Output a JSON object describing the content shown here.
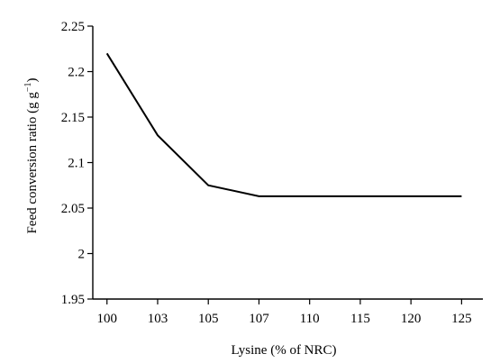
{
  "chart_data": {
    "type": "line",
    "title": "",
    "xlabel": "Lysine (% of NRC)",
    "ylabel_main": "Feed conversion ratio (g g",
    "ylabel_sup": "−1",
    "ylabel_close": ")",
    "categories": [
      "100",
      "103",
      "105",
      "107",
      "110",
      "115",
      "120",
      "125"
    ],
    "series": [
      {
        "values": [
          2.22,
          2.13,
          2.075,
          2.063,
          2.063,
          2.063,
          2.063,
          2.063
        ]
      }
    ],
    "ylim": [
      1.95,
      2.25
    ],
    "yticks": [
      "1.95",
      "2",
      "2.05",
      "2.1",
      "2.15",
      "2.2",
      "2.25"
    ],
    "grid": false,
    "legend": "none"
  }
}
